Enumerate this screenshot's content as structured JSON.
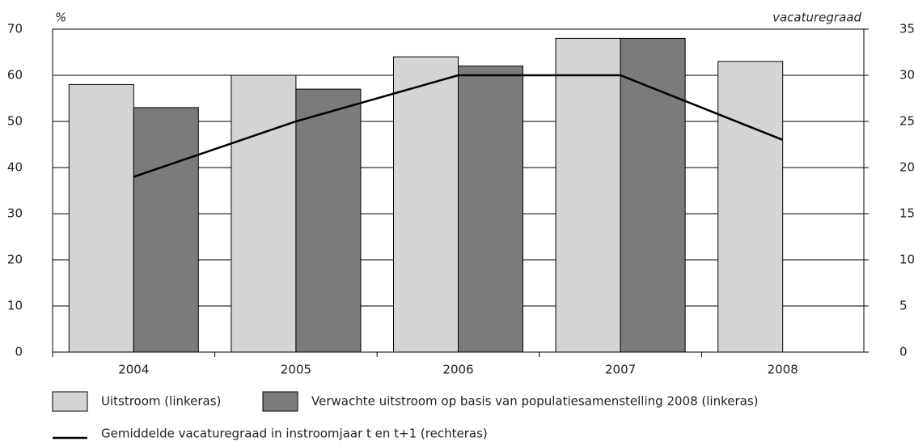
{
  "chart_data": {
    "type": "bar",
    "ylabel": "%",
    "y2label": "vacaturegraad",
    "categories": [
      "2004",
      "2005",
      "2006",
      "2007",
      "2008"
    ],
    "series": [
      {
        "name": "Uitstroom (linkeras)",
        "color": "#d4d4d4",
        "values": [
          58,
          60,
          64,
          68,
          63
        ]
      },
      {
        "name": "Verwachte uitstroom op basis van populatiesamenstelling 2008 (linkeras)",
        "color": "#7a7b7d",
        "values": [
          53,
          57,
          62,
          68,
          null
        ]
      },
      {
        "name": "Gemiddelde vacaturegraad in instroomjaar t en t+1 (rechteras)",
        "color": "#000000",
        "type": "line",
        "axis": "y2",
        "values": [
          19,
          25,
          30,
          30,
          23
        ]
      }
    ],
    "ylim": [
      0,
      70
    ],
    "yticks": [
      0,
      10,
      20,
      30,
      40,
      50,
      60,
      70
    ],
    "y2lim": [
      0,
      35
    ],
    "y2ticks": [
      0,
      5,
      10,
      15,
      20,
      25,
      30,
      35
    ],
    "grid": true
  }
}
